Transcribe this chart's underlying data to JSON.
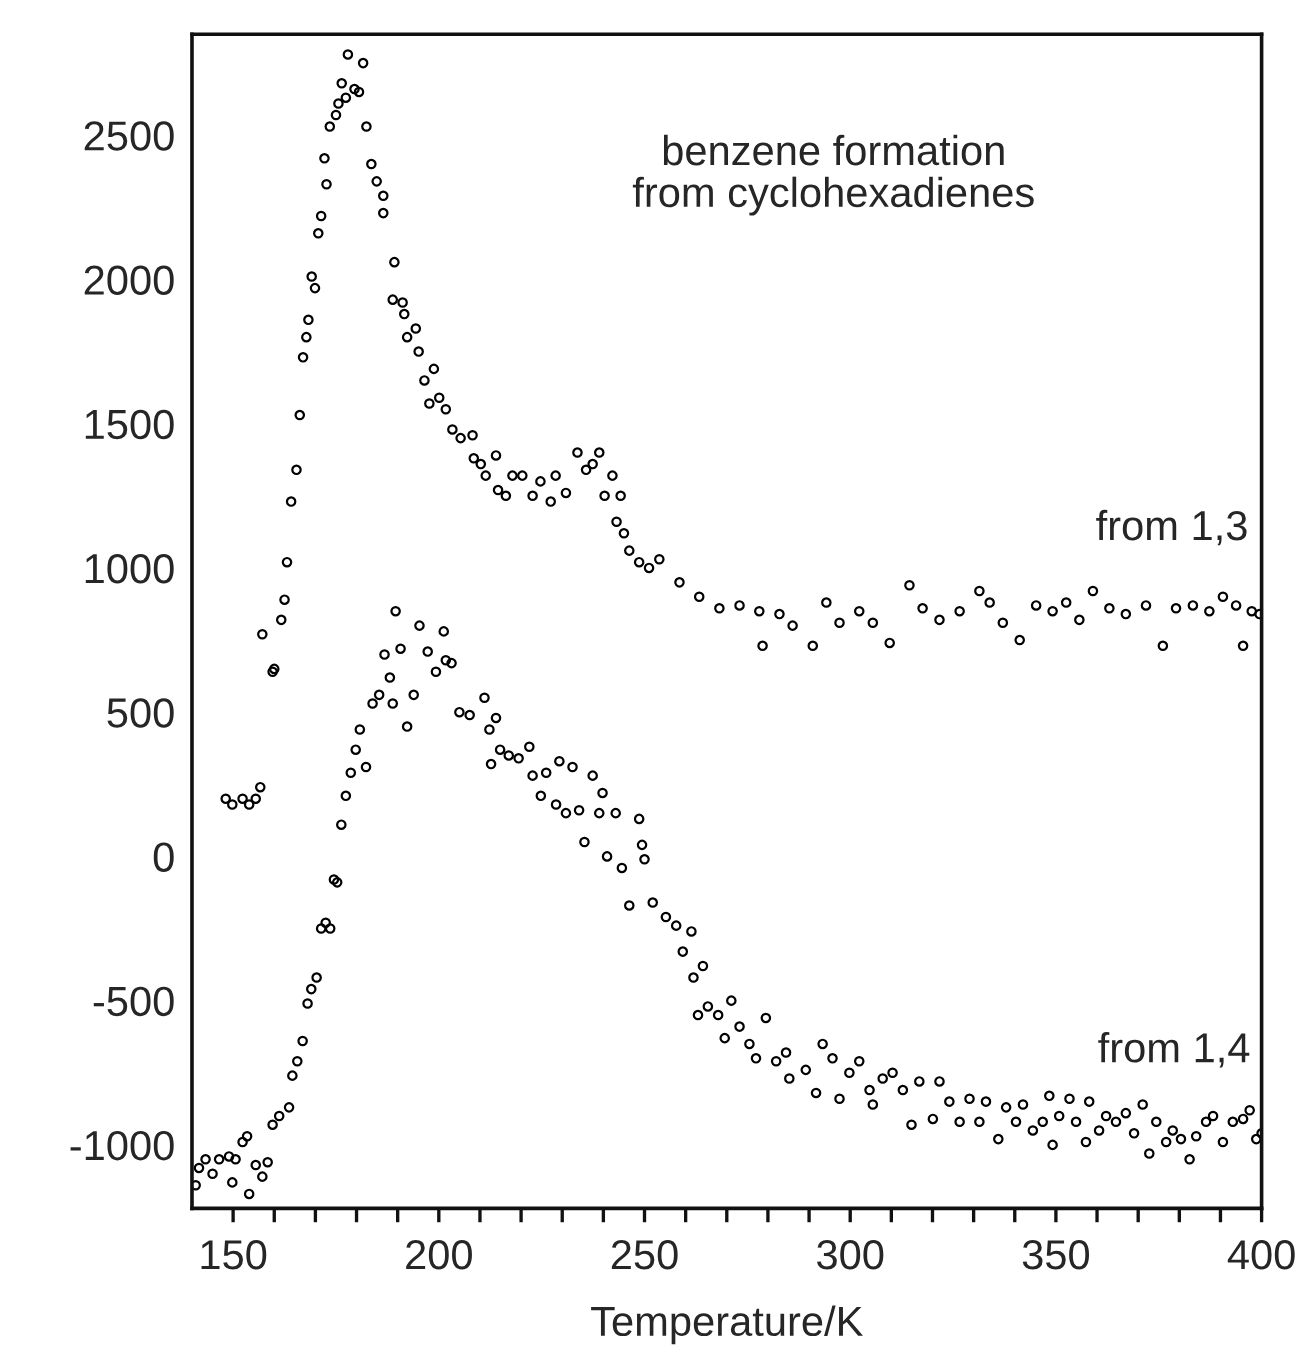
{
  "chart_data": {
    "type": "scatter",
    "xlabel": "Temperature/K",
    "annotations": [
      "benzene formation\nfrom cyclohexadienes"
    ],
    "xlim": [
      140,
      400
    ],
    "ylim": [
      -1220,
      2850
    ],
    "xticks": [
      150,
      {
        "value": 160,
        "label": null
      },
      {
        "value": 170,
        "label": null
      },
      {
        "value": 180,
        "label": null
      },
      {
        "value": 190,
        "label": null
      },
      200,
      {
        "value": 210,
        "label": null
      },
      {
        "value": 220,
        "label": null
      },
      {
        "value": 230,
        "label": null
      },
      {
        "value": 240,
        "label": null
      },
      250,
      {
        "value": 260,
        "label": null
      },
      {
        "value": 270,
        "label": null
      },
      {
        "value": 280,
        "label": null
      },
      {
        "value": 290,
        "label": null
      },
      300,
      {
        "value": 310,
        "label": null
      },
      {
        "value": 320,
        "label": null
      },
      {
        "value": 330,
        "label": null
      },
      {
        "value": 340,
        "label": null
      },
      350,
      {
        "value": 360,
        "label": null
      },
      {
        "value": 370,
        "label": null
      },
      {
        "value": 380,
        "label": null
      },
      {
        "value": 390,
        "label": null
      },
      400
    ],
    "yticks": [
      -1000,
      -500,
      0,
      500,
      1000,
      1500,
      2000,
      2500
    ],
    "marker": "circle",
    "grid": false,
    "legend": false,
    "series": [
      {
        "name": "from 1,3",
        "color": "#000000",
        "x": [
          148.2,
          149.8,
          152.3,
          153.9,
          155.5,
          156.6,
          157.1,
          159.6,
          160.0,
          161.7,
          162.5,
          163.1,
          164.1,
          165.4,
          166.2,
          167.0,
          167.8,
          168.3,
          169.1,
          169.9,
          170.7,
          171.4,
          172.2,
          172.7,
          173.5,
          175.0,
          175.6,
          176.4,
          177.4,
          177.9,
          179.5,
          180.6,
          181.6,
          182.4,
          183.6,
          184.9,
          186.5,
          186.5,
          188.8,
          189.2,
          191.2,
          191.6,
          192.3,
          194.4,
          195.1,
          196.5,
          197.7,
          198.8,
          200.1,
          201.7,
          203.3,
          205.3,
          208.2,
          208.5,
          210.2,
          211.4,
          213.9,
          214.4,
          216.3,
          217.9,
          220.3,
          222.8,
          224.7,
          227.2,
          228.4,
          230.9,
          233.7,
          235.8,
          237.4,
          239.0,
          240.3,
          242.2,
          243.2,
          244.2,
          245.0,
          246.3,
          248.7,
          251.1,
          253.6,
          258.5,
          263.3,
          268.2,
          273.1,
          277.9,
          278.7,
          282.8,
          286.0,
          290.9,
          294.2,
          297.4,
          302.2,
          305.5,
          309.6,
          314.4,
          317.6,
          321.7,
          326.6,
          331.4,
          333.9,
          337.1,
          341.2,
          345.2,
          349.2,
          352.5,
          355.7,
          359.0,
          363.0,
          367.0,
          371.9,
          376.0,
          379.2,
          383.3,
          387.3,
          390.6,
          393.8,
          395.5,
          397.6,
          399.5
        ],
        "values": [
          200,
          180,
          200,
          180,
          200,
          240,
          770,
          640,
          650,
          820,
          890,
          1020,
          1230,
          1340,
          1530,
          1730,
          1800,
          1860,
          2010,
          1970,
          2160,
          2220,
          2420,
          2330,
          2530,
          2570,
          2610,
          2680,
          2630,
          2780,
          2660,
          2650,
          2750,
          2530,
          2400,
          2340,
          2290,
          2230,
          1930,
          2060,
          1920,
          1880,
          1800,
          1830,
          1750,
          1650,
          1570,
          1690,
          1590,
          1550,
          1480,
          1450,
          1460,
          1380,
          1360,
          1320,
          1390,
          1270,
          1250,
          1320,
          1320,
          1250,
          1300,
          1230,
          1320,
          1260,
          1400,
          1340,
          1360,
          1400,
          1250,
          1320,
          1160,
          1250,
          1120,
          1060,
          1020,
          1000,
          1030,
          950,
          900,
          860,
          870,
          850,
          730,
          840,
          800,
          730,
          880,
          810,
          850,
          810,
          740,
          940,
          860,
          820,
          850,
          920,
          880,
          810,
          750,
          870,
          850,
          880,
          820,
          920,
          860,
          840,
          870,
          730,
          860,
          870,
          850,
          900,
          870,
          730,
          850,
          840
        ]
      },
      {
        "name": "from 1,4",
        "color": "#000000",
        "x": [
          140.9,
          141.7,
          143.3,
          145.0,
          146.6,
          149.0,
          149.8,
          150.6,
          152.3,
          153.4,
          153.9,
          155.5,
          157.1,
          158.4,
          159.6,
          161.2,
          163.6,
          164.4,
          165.6,
          166.9,
          168.1,
          169.0,
          170.3,
          171.4,
          172.5,
          173.6,
          174.5,
          175.3,
          176.3,
          177.4,
          178.6,
          179.8,
          180.8,
          182.3,
          183.9,
          185.5,
          186.8,
          188.1,
          188.8,
          189.5,
          190.7,
          192.3,
          193.9,
          195.3,
          197.3,
          199.3,
          201.2,
          201.7,
          203.1,
          205.0,
          207.5,
          211.1,
          212.3,
          212.7,
          213.9,
          214.9,
          217.0,
          219.4,
          222.0,
          222.8,
          224.8,
          226.1,
          228.5,
          229.3,
          230.9,
          232.5,
          234.1,
          235.4,
          237.4,
          239.0,
          239.8,
          240.9,
          243.0,
          244.5,
          246.3,
          248.7,
          249.4,
          250.0,
          252.0,
          255.2,
          257.7,
          259.3,
          261.4,
          261.9,
          263.0,
          264.2,
          265.4,
          267.9,
          269.5,
          271.1,
          273.1,
          275.5,
          277.1,
          279.5,
          282.0,
          284.4,
          285.2,
          289.2,
          291.7,
          293.3,
          295.7,
          297.4,
          299.8,
          302.2,
          304.7,
          305.5,
          307.9,
          310.3,
          312.8,
          314.9,
          316.8,
          320.1,
          321.7,
          324.1,
          326.6,
          329.0,
          331.4,
          333.0,
          336.0,
          337.9,
          340.3,
          342.0,
          344.4,
          346.8,
          348.4,
          349.2,
          350.8,
          353.3,
          354.9,
          357.3,
          358.1,
          360.5,
          362.2,
          364.6,
          367.0,
          369.0,
          371.1,
          372.7,
          374.4,
          376.8,
          378.4,
          380.4,
          382.5,
          384.1,
          386.5,
          388.2,
          390.6,
          393.0,
          395.5,
          397.1,
          398.7,
          400.0
        ],
        "values": [
          -1140,
          -1080,
          -1050,
          -1100,
          -1050,
          -1040,
          -1130,
          -1050,
          -990,
          -970,
          -1170,
          -1070,
          -1110,
          -1060,
          -930,
          -900,
          -870,
          -760,
          -710,
          -640,
          -510,
          -460,
          -420,
          -250,
          -230,
          -250,
          -80,
          -90,
          110,
          210,
          290,
          370,
          440,
          310,
          530,
          560,
          700,
          620,
          530,
          850,
          720,
          450,
          560,
          800,
          710,
          640,
          780,
          680,
          670,
          500,
          490,
          550,
          440,
          320,
          480,
          370,
          350,
          340,
          380,
          280,
          210,
          290,
          180,
          330,
          150,
          310,
          160,
          50,
          280,
          150,
          220,
          0,
          150,
          -40,
          -170,
          130,
          40,
          -10,
          -160,
          -210,
          -240,
          -330,
          -260,
          -420,
          -550,
          -380,
          -520,
          -550,
          -630,
          -500,
          -590,
          -650,
          -700,
          -560,
          -710,
          -680,
          -770,
          -740,
          -820,
          -650,
          -700,
          -840,
          -750,
          -710,
          -810,
          -860,
          -770,
          -750,
          -810,
          -930,
          -780,
          -910,
          -780,
          -850,
          -920,
          -840,
          -920,
          -850,
          -980,
          -870,
          -920,
          -860,
          -950,
          -920,
          -830,
          -1000,
          -900,
          -840,
          -920,
          -990,
          -850,
          -950,
          -900,
          -920,
          -890,
          -960,
          -860,
          -1030,
          -920,
          -990,
          -950,
          -980,
          -1050,
          -970,
          -920,
          -900,
          -990,
          -920,
          -910,
          -880,
          -980,
          -960
        ]
      }
    ]
  }
}
